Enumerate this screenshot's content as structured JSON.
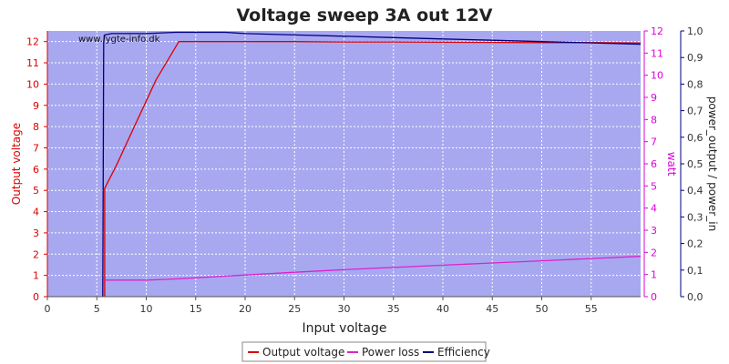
{
  "chart_data": {
    "type": "line",
    "title": "Voltage sweep 3A out 12V",
    "watermark": "www.lygte-info.dk",
    "xlabel": "Input voltage",
    "ylabel_left": "Output voltage",
    "ylabel_right1": "watt",
    "ylabel_right2": "power_output / power_in",
    "xlim": [
      0,
      60
    ],
    "ylim_left": [
      0,
      12.5
    ],
    "ylim_right1": [
      0,
      12
    ],
    "ylim_right2": [
      0,
      1.0
    ],
    "x_ticks": [
      "0",
      "5",
      "10",
      "15",
      "20",
      "25",
      "30",
      "35",
      "40",
      "45",
      "50",
      "55"
    ],
    "y_ticks_left": [
      "0",
      "1",
      "2",
      "3",
      "4",
      "5",
      "6",
      "7",
      "8",
      "9",
      "10",
      "11",
      "12"
    ],
    "y_ticks_right1": [
      "0",
      "1",
      "2",
      "3",
      "4",
      "5",
      "6",
      "7",
      "8",
      "9",
      "10",
      "11",
      "12"
    ],
    "y_ticks_right2": [
      "0,0",
      "0,1",
      "0,2",
      "0,3",
      "0,4",
      "0,5",
      "0,6",
      "0,7",
      "0,8",
      "0,9",
      "1,0"
    ],
    "grid": true,
    "legend_position": "bottom-center",
    "colors": {
      "plot_bg": "#a8a8f0",
      "grid": "#ffffff",
      "output_voltage": "#dd0000",
      "power_loss": "#dd22cc",
      "efficiency": "#000080",
      "left_axis": "#dd0000",
      "right1_axis": "#dd00dd",
      "right2_axis": "#000080"
    },
    "series": [
      {
        "name": "Output voltage",
        "axis": "left",
        "x": [
          5.8,
          5.8,
          5.8,
          7.0,
          9.0,
          11.0,
          13.3,
          15,
          20,
          25,
          30,
          35,
          40,
          45,
          50,
          55,
          60
        ],
        "y": [
          0.0,
          0.3,
          5.1,
          6.2,
          8.2,
          10.2,
          12.0,
          12.0,
          12.0,
          12.0,
          11.98,
          11.98,
          11.97,
          11.96,
          11.95,
          11.95,
          11.93
        ]
      },
      {
        "name": "Power loss",
        "axis": "right1",
        "x": [
          5.8,
          10,
          12,
          15,
          20,
          25,
          30,
          35,
          40,
          45,
          50,
          55,
          60
        ],
        "y": [
          0.75,
          0.75,
          0.78,
          0.85,
          0.98,
          1.1,
          1.22,
          1.32,
          1.42,
          1.52,
          1.62,
          1.72,
          1.82
        ]
      },
      {
        "name": "Efficiency",
        "axis": "right2",
        "x": [
          5.6,
          5.7,
          5.8,
          6.5,
          10,
          13,
          18,
          20,
          25,
          30,
          35,
          40,
          45,
          50,
          55,
          60
        ],
        "y": [
          0.0,
          0.96,
          0.985,
          0.99,
          0.99,
          0.995,
          0.995,
          0.99,
          0.985,
          0.98,
          0.975,
          0.97,
          0.965,
          0.96,
          0.955,
          0.95
        ]
      }
    ]
  }
}
